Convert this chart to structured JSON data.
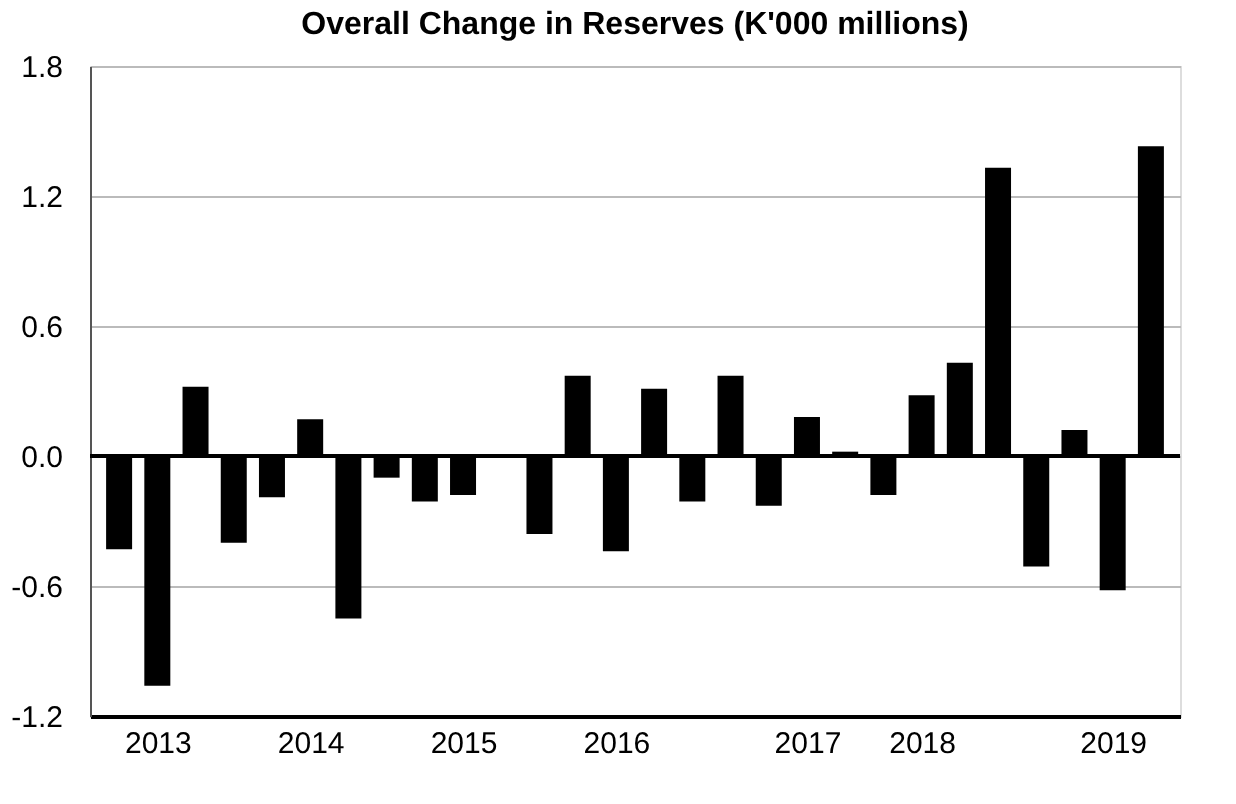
{
  "chart_data": {
    "type": "bar",
    "title": "Overall Change in Reserves (K'000 millions)",
    "categories": [
      null,
      "2013",
      null,
      null,
      null,
      "2014",
      null,
      null,
      null,
      "2015",
      null,
      null,
      null,
      "2016",
      null,
      null,
      null,
      null,
      "2017",
      null,
      null,
      "2018",
      null,
      null,
      null,
      null,
      "2019",
      null
    ],
    "values": [
      -0.43,
      -1.06,
      0.32,
      -0.4,
      -0.19,
      0.17,
      -0.75,
      -0.1,
      -0.21,
      -0.18,
      0,
      -0.36,
      0.37,
      -0.44,
      0.31,
      -0.21,
      0.37,
      -0.23,
      0.18,
      0.02,
      -0.18,
      0.28,
      0.43,
      1.33,
      -0.51,
      0.12,
      -0.62,
      1.43
    ],
    "color": "#000000",
    "ylim": [
      -1.2,
      1.8
    ],
    "yticks": [
      {
        "value": -1.2,
        "label": "-1.2"
      },
      {
        "value": -0.6,
        "label": "-0.6"
      },
      {
        "value": 0,
        "label": "0.0"
      },
      {
        "value": 0.6,
        "label": "0.6"
      },
      {
        "value": 1.2,
        "label": "1.2"
      },
      {
        "value": 1.8,
        "label": "1.8"
      }
    ],
    "grid": "y"
  }
}
